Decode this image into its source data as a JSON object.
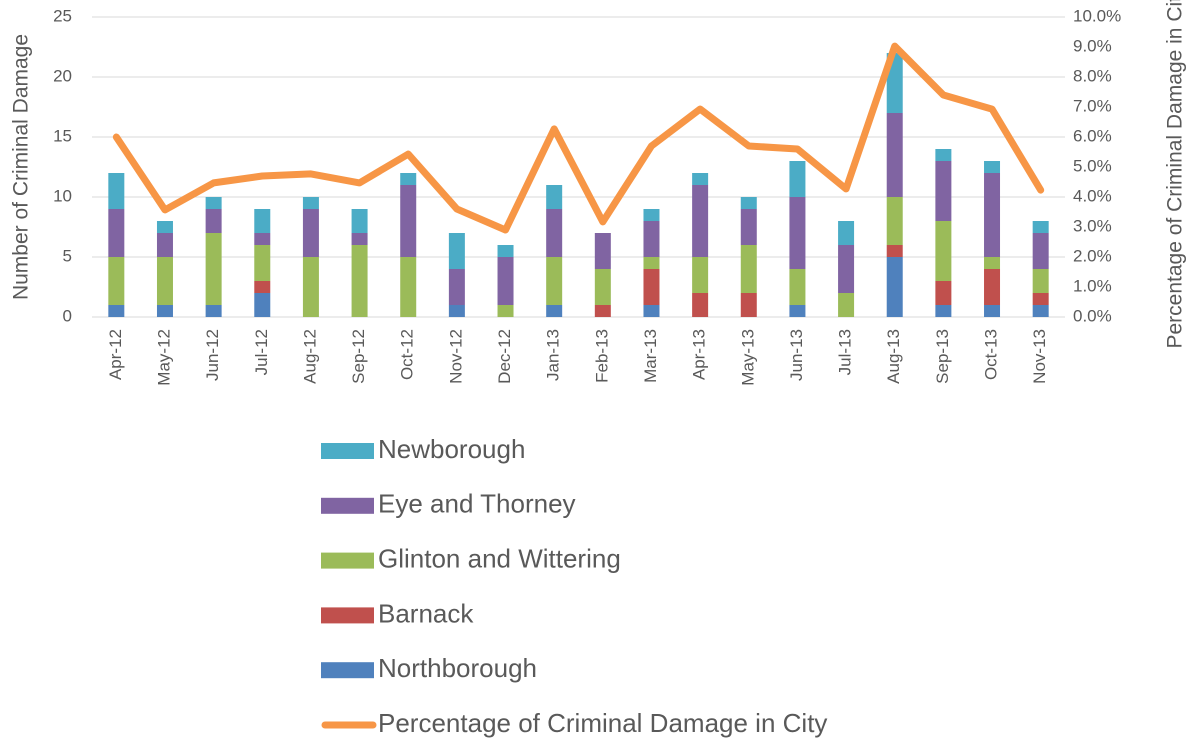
{
  "chart_data": {
    "type": "bar",
    "y_label": "Number of Criminal Damage",
    "y2_label": "Percentage of Criminal Damage in City",
    "categories": [
      "Apr-12",
      "May-12",
      "Jun-12",
      "Jul-12",
      "Aug-12",
      "Sep-12",
      "Oct-12",
      "Nov-12",
      "Dec-12",
      "Jan-13",
      "Feb-13",
      "Mar-13",
      "Apr-13",
      "May-13",
      "Jun-13",
      "Jul-13",
      "Aug-13",
      "Sep-13",
      "Oct-13",
      "Nov-13"
    ],
    "stacked": true,
    "grid": true,
    "ylim": [
      0,
      25
    ],
    "yticks": [
      0,
      5,
      10,
      15,
      20,
      25
    ],
    "y2lim": [
      0,
      10
    ],
    "y2ticks": [
      {
        "value": 0,
        "label": "0.0%"
      },
      {
        "value": 1,
        "label": "1.0%"
      },
      {
        "value": 2,
        "label": "2.0%"
      },
      {
        "value": 3,
        "label": "3.0%"
      },
      {
        "value": 4,
        "label": "4.0%"
      },
      {
        "value": 5,
        "label": "5.0%"
      },
      {
        "value": 6,
        "label": "6.0%"
      },
      {
        "value": 7,
        "label": "7.0%"
      },
      {
        "value": 8,
        "label": "8.0%"
      },
      {
        "value": 9,
        "label": "9.0%"
      },
      {
        "value": 10,
        "label": "10.0%"
      }
    ],
    "series": [
      {
        "name": "Northborough",
        "color": "#4f81bd",
        "values": [
          1,
          1,
          1,
          2,
          0,
          0,
          0,
          1,
          0,
          1,
          0,
          1,
          0,
          0,
          1,
          0,
          5,
          1,
          1,
          1
        ]
      },
      {
        "name": "Barnack",
        "color": "#c0504d",
        "values": [
          0,
          0,
          0,
          1,
          0,
          0,
          0,
          0,
          0,
          0,
          1,
          3,
          2,
          2,
          0,
          0,
          1,
          2,
          3,
          1
        ]
      },
      {
        "name": "Glinton and Wittering",
        "color": "#9bbb59",
        "values": [
          4,
          4,
          6,
          3,
          5,
          6,
          5,
          0,
          1,
          4,
          3,
          1,
          3,
          4,
          3,
          2,
          4,
          5,
          1,
          2
        ]
      },
      {
        "name": "Eye and Thorney",
        "color": "#8064a2",
        "values": [
          4,
          2,
          2,
          1,
          4,
          1,
          6,
          3,
          4,
          4,
          3,
          3,
          6,
          3,
          6,
          4,
          7,
          5,
          7,
          3
        ]
      },
      {
        "name": "Newborough",
        "color": "#4bacc6",
        "values": [
          3,
          1,
          1,
          2,
          1,
          2,
          1,
          3,
          1,
          2,
          0,
          1,
          1,
          1,
          3,
          2,
          5,
          1,
          1,
          1
        ]
      },
      {
        "name": "Percentage of Criminal Damage in City",
        "color": "#f79646",
        "type": "line",
        "axis": "y2",
        "values": [
          6.0,
          3.57,
          4.47,
          4.7,
          4.77,
          4.47,
          5.43,
          3.6,
          2.9,
          6.27,
          3.17,
          5.7,
          6.93,
          5.7,
          5.6,
          4.27,
          9.03,
          7.4,
          6.93,
          4.23
        ]
      }
    ]
  }
}
